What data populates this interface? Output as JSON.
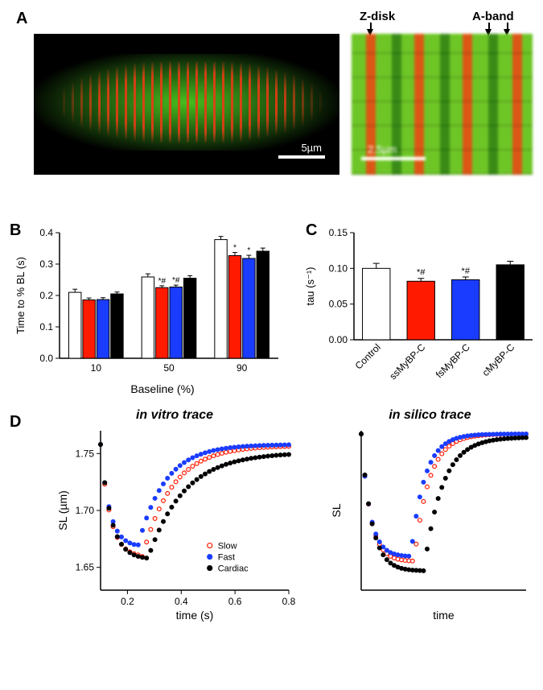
{
  "panelA": {
    "label": "A",
    "top_labels": {
      "zdisk": "Z-disk",
      "aband": "A-band"
    },
    "scalebar_left": "5µm",
    "scalebar_right": "2.5µm"
  },
  "panelB": {
    "label": "B",
    "ylabel": "Time to % BL (s)",
    "xlabel": "Baseline (%)",
    "ylim": [
      0,
      0.4
    ],
    "ytick_step": 0.1,
    "categories": [
      "10",
      "50",
      "90"
    ],
    "series": [
      {
        "name": "Control",
        "color": "#ffffff",
        "stroke": "#000000"
      },
      {
        "name": "ssMyBP-C",
        "color": "#ff1a00",
        "stroke": "#000000"
      },
      {
        "name": "fsMyBP-C",
        "color": "#1a3cff",
        "stroke": "#000000"
      },
      {
        "name": "cMyBP-C",
        "color": "#000000",
        "stroke": "#000000"
      }
    ],
    "values": [
      [
        0.21,
        0.186,
        0.187,
        0.205
      ],
      [
        0.259,
        0.225,
        0.227,
        0.255
      ],
      [
        0.378,
        0.327,
        0.318,
        0.341
      ]
    ],
    "errors": [
      [
        0.01,
        0.006,
        0.006,
        0.006
      ],
      [
        0.01,
        0.006,
        0.006,
        0.008
      ],
      [
        0.01,
        0.01,
        0.01,
        0.01
      ]
    ],
    "annot": [
      [
        "",
        "",
        "",
        ""
      ],
      [
        "",
        "*#",
        "*#",
        ""
      ],
      [
        "",
        "*",
        "*",
        ""
      ]
    ]
  },
  "panelC": {
    "label": "C",
    "ylabel": "tau (s⁻¹)",
    "ylim": [
      0,
      0.15
    ],
    "ytick_step": 0.05,
    "categories": [
      "Control",
      "ssMyBP-C",
      "fsMyBP-C",
      "cMyBP-C"
    ],
    "colors": [
      "#ffffff",
      "#ff1a00",
      "#1a3cff",
      "#000000"
    ],
    "values": [
      0.1,
      0.082,
      0.084,
      0.105
    ],
    "errors": [
      0.007,
      0.004,
      0.004,
      0.005
    ],
    "annot": [
      "",
      "*#",
      "*#",
      ""
    ]
  },
  "panelD": {
    "label": "D",
    "left": {
      "title": "in vitro trace",
      "ylabel": "SL (µm)",
      "xlabel": "time (s)",
      "xlim": [
        0.1,
        0.8
      ],
      "ylim": [
        1.63,
        1.77
      ],
      "xticks": [
        0.2,
        0.4,
        0.6,
        0.8
      ],
      "yticks": [
        1.65,
        1.7,
        1.75
      ],
      "series": [
        {
          "name": "Slow",
          "label": "Slow",
          "color": "#ff1a00",
          "fill": "none",
          "marker": "circle"
        },
        {
          "name": "Fast",
          "label": "Fast",
          "color": "#1a3cff",
          "fill": "#1a3cff",
          "marker": "circle"
        },
        {
          "name": "Cardiac",
          "label": "Cardiac",
          "color": "#000000",
          "fill": "#000000",
          "marker": "circle"
        }
      ],
      "curves": {
        "Slow": {
          "y0": 1.758,
          "ymin": 1.659,
          "tmin": 0.255,
          "yend": 1.757,
          "k1": 28,
          "k2": 9
        },
        "Fast": {
          "y0": 1.758,
          "ymin": 1.668,
          "tmin": 0.238,
          "yend": 1.758,
          "k1": 30,
          "k2": 10
        },
        "Cardiac": {
          "y0": 1.758,
          "ymin": 1.657,
          "tmin": 0.275,
          "yend": 1.751,
          "k1": 26,
          "k2": 7.5
        }
      }
    },
    "right": {
      "title": "in silico trace",
      "ylabel": "SL",
      "xlabel": "time",
      "xlim": [
        0,
        1
      ],
      "ylim": [
        0,
        1
      ],
      "curves": {
        "Slow": {
          "y0": 0.98,
          "ymin": 0.18,
          "tmin": 0.32,
          "yend": 0.98,
          "k1": 18,
          "k2": 11
        },
        "Fast": {
          "y0": 0.98,
          "ymin": 0.21,
          "tmin": 0.3,
          "yend": 0.98,
          "k1": 19,
          "k2": 12
        },
        "Cardiac": {
          "y0": 0.98,
          "ymin": 0.12,
          "tmin": 0.38,
          "yend": 0.96,
          "k1": 16,
          "k2": 9
        }
      }
    }
  }
}
